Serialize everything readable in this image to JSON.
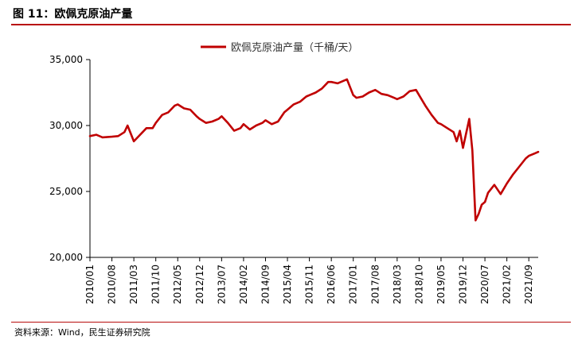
{
  "header": {
    "figure_title": "图 11：欧佩克原油产量"
  },
  "footer": {
    "source": "资料来源：Wind，民生证券研究院"
  },
  "colors": {
    "series": "#c00000",
    "axis": "#000000",
    "rule": "#b80c0c"
  },
  "chart_data": {
    "type": "line",
    "title": "",
    "xlabel": "",
    "ylabel": "",
    "ylim": [
      20000,
      35000
    ],
    "yticks": [
      20000,
      25000,
      30000,
      35000
    ],
    "ytick_labels": [
      "20,000",
      "25,000",
      "30,000",
      "35,000"
    ],
    "xtick_labels": [
      "2010/01",
      "2010/08",
      "2011/03",
      "2011/10",
      "2012/05",
      "2012/12",
      "2013/07",
      "2014/02",
      "2014/09",
      "2015/04",
      "2015/11",
      "2016/06",
      "2017/01",
      "2017/08",
      "2018/03",
      "2018/10",
      "2019/05",
      "2019/12",
      "2020/07",
      "2021/02",
      "2021/09"
    ],
    "legend": {
      "position": "top-center"
    },
    "grid": false,
    "series": [
      {
        "name": "欧佩克原油产量（千桶/天）",
        "x": [
          "2010/01",
          "2010/03",
          "2010/05",
          "2010/08",
          "2010/10",
          "2010/12",
          "2011/01",
          "2011/03",
          "2011/05",
          "2011/07",
          "2011/09",
          "2011/10",
          "2011/12",
          "2012/02",
          "2012/04",
          "2012/05",
          "2012/07",
          "2012/09",
          "2012/11",
          "2012/12",
          "2013/02",
          "2013/04",
          "2013/06",
          "2013/07",
          "2013/09",
          "2013/11",
          "2014/01",
          "2014/02",
          "2014/04",
          "2014/06",
          "2014/08",
          "2014/09",
          "2014/11",
          "2015/01",
          "2015/03",
          "2015/04",
          "2015/06",
          "2015/08",
          "2015/10",
          "2015/11",
          "2016/01",
          "2016/03",
          "2016/05",
          "2016/06",
          "2016/08",
          "2016/10",
          "2016/11",
          "2017/01",
          "2017/02",
          "2017/04",
          "2017/06",
          "2017/08",
          "2017/10",
          "2017/12",
          "2018/02",
          "2018/03",
          "2018/05",
          "2018/07",
          "2018/09",
          "2018/10",
          "2018/12",
          "2019/02",
          "2019/04",
          "2019/05",
          "2019/07",
          "2019/09",
          "2019/10",
          "2019/11",
          "2019/12",
          "2020/02",
          "2020/03",
          "2020/04",
          "2020/05",
          "2020/06",
          "2020/07",
          "2020/08",
          "2020/10",
          "2020/12",
          "2021/01",
          "2021/02",
          "2021/04",
          "2021/06",
          "2021/08",
          "2021/09",
          "2021/11",
          "2021/12"
        ],
        "values": [
          29200,
          29300,
          29100,
          29150,
          29200,
          29500,
          30000,
          28800,
          29300,
          29800,
          29800,
          30200,
          30800,
          31000,
          31500,
          31600,
          31300,
          31200,
          30700,
          30500,
          30200,
          30300,
          30500,
          30700,
          30200,
          29600,
          29800,
          30100,
          29700,
          30000,
          30200,
          30400,
          30100,
          30300,
          31000,
          31200,
          31600,
          31800,
          32200,
          32300,
          32500,
          32800,
          33300,
          33300,
          33200,
          33400,
          33500,
          32300,
          32100,
          32200,
          32500,
          32700,
          32400,
          32300,
          32100,
          32000,
          32200,
          32600,
          32700,
          32300,
          31500,
          30800,
          30200,
          30100,
          29800,
          29500,
          28800,
          29600,
          28300,
          30500,
          28100,
          22800,
          23300,
          24000,
          24200,
          24900,
          25500,
          24800,
          25200,
          25600,
          26300,
          26900,
          27500,
          27700,
          27900,
          28000
        ]
      }
    ]
  }
}
